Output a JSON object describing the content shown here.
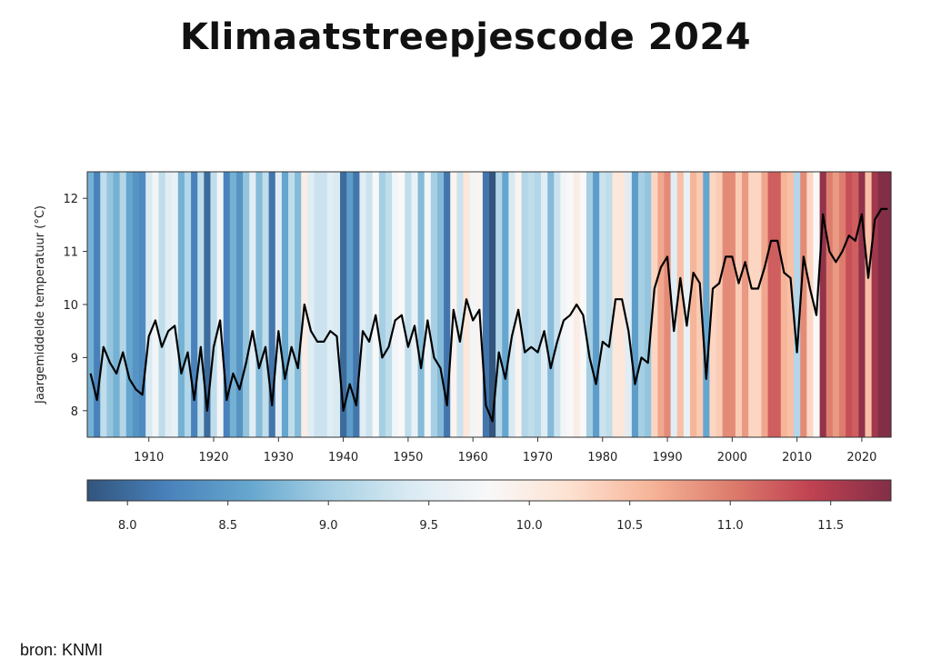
{
  "chart_data": {
    "type": "line",
    "title": "Klimaatstreepjescode 2024",
    "xlabel": "",
    "ylabel": "Jaargemiddelde temperatuur (°C)",
    "ylabel_prefix": "Jaargemiddelde temperatuur (",
    "ylabel_unit": "o",
    "ylabel_suffix": "C)",
    "source": "bron: KNMI",
    "xlim": [
      1900.5,
      2024.5
    ],
    "ylim": [
      7.5,
      12.5
    ],
    "xticks": [
      1910,
      1920,
      1930,
      1940,
      1950,
      1960,
      1970,
      1980,
      1990,
      2000,
      2010,
      2020
    ],
    "yticks": [
      8,
      9,
      10,
      11,
      12
    ],
    "colorbar": {
      "range": [
        7.8,
        11.8
      ],
      "ticks": [
        "8.0",
        "8.5",
        "9.0",
        "9.5",
        "10.0",
        "10.5",
        "11.0",
        "11.5"
      ],
      "colormap": "RdBu_r"
    },
    "start_year": 1901,
    "values": [
      8.7,
      8.2,
      9.2,
      8.9,
      8.7,
      9.1,
      8.6,
      8.4,
      8.3,
      9.4,
      9.7,
      9.2,
      9.5,
      9.6,
      8.7,
      9.1,
      8.2,
      9.2,
      8.0,
      9.2,
      9.7,
      8.2,
      8.7,
      8.4,
      8.9,
      9.5,
      8.8,
      9.2,
      8.1,
      9.5,
      8.6,
      9.2,
      8.8,
      10.0,
      9.5,
      9.3,
      9.3,
      9.5,
      9.4,
      8.0,
      8.5,
      8.1,
      9.5,
      9.3,
      9.8,
      9.0,
      9.2,
      9.7,
      9.8,
      9.2,
      9.6,
      8.8,
      9.7,
      9.0,
      8.8,
      8.1,
      9.9,
      9.3,
      10.1,
      9.7,
      9.9,
      8.1,
      7.8,
      9.1,
      8.6,
      9.4,
      9.9,
      9.1,
      9.2,
      9.1,
      9.5,
      8.8,
      9.3,
      9.7,
      9.8,
      10.0,
      9.8,
      9.0,
      8.5,
      9.3,
      9.2,
      10.1,
      10.1,
      9.5,
      8.5,
      9.0,
      8.9,
      10.3,
      10.7,
      10.9,
      9.5,
      10.5,
      9.6,
      10.6,
      10.4,
      8.6,
      10.3,
      10.4,
      10.9,
      10.9,
      10.4,
      10.8,
      10.3,
      10.3,
      10.7,
      11.2,
      11.2,
      10.6,
      10.5,
      9.1,
      10.9,
      10.3,
      9.8,
      11.7,
      11.0,
      10.8,
      11.0,
      11.3,
      11.2,
      11.7,
      10.5,
      11.6,
      11.8,
      11.8
    ],
    "line_color": "#000000"
  }
}
